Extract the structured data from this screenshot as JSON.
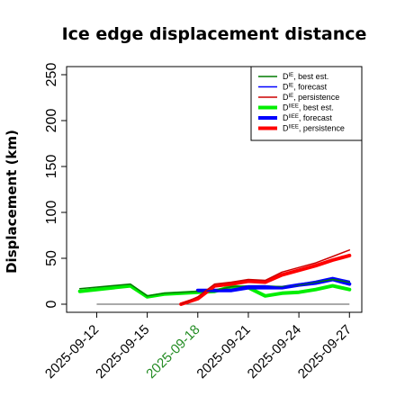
{
  "chart_data": {
    "type": "line",
    "title": "Ice edge displacement distance",
    "xlabel": "",
    "ylabel": "Displacement (km)",
    "ylim": [
      0,
      260
    ],
    "yticks": [
      0,
      50,
      100,
      150,
      200,
      250
    ],
    "x_axis": {
      "type": "date",
      "range": [
        "2025-09-10",
        "2025-09-28"
      ],
      "ticks": [
        "2025-09-12",
        "2025-09-15",
        "2025-09-18",
        "2025-09-21",
        "2025-09-24",
        "2025-09-27"
      ],
      "highlighted_tick": "2025-09-18",
      "highlight_color": "#228b22"
    },
    "grid": false,
    "legend_placement": "top-right",
    "reference_line": {
      "y": 0,
      "x_range": [
        "2025-09-12",
        "2025-09-27"
      ],
      "color": "#555555"
    },
    "series": [
      {
        "name": "D^IE, best est.",
        "label_base": "D",
        "label_sup": "IE",
        "label_rest": ", best est.",
        "color": "#007a00",
        "width": 1.5,
        "x": [
          "2025-09-11",
          "2025-09-14",
          "2025-09-15",
          "2025-09-16",
          "2025-09-18",
          "2025-09-19",
          "2025-09-20",
          "2025-09-21",
          "2025-09-22",
          "2025-09-23",
          "2025-09-24",
          "2025-09-25",
          "2025-09-26",
          "2025-09-27"
        ],
        "y": [
          17,
          22,
          9,
          12,
          14,
          15,
          19,
          20,
          20,
          19,
          21,
          24,
          27,
          24
        ]
      },
      {
        "name": "D^IE, forecast",
        "label_base": "D",
        "label_sup": "IE",
        "label_rest": ", forecast",
        "color": "#0000ff",
        "width": 1.5,
        "x": [
          "2025-09-18",
          "2025-09-19",
          "2025-09-20",
          "2025-09-21",
          "2025-09-22",
          "2025-09-23",
          "2025-09-24",
          "2025-09-25",
          "2025-09-26",
          "2025-09-27"
        ],
        "y": [
          14,
          15,
          16,
          20,
          20,
          18,
          22,
          25,
          29,
          25
        ]
      },
      {
        "name": "D^IE, persistence",
        "label_base": "D",
        "label_sup": "IE",
        "label_rest": ", persistence",
        "color": "#cc0000",
        "width": 1.5,
        "x": [
          "2025-09-17",
          "2025-09-18",
          "2025-09-19",
          "2025-09-20",
          "2025-09-21",
          "2025-09-22",
          "2025-09-23",
          "2025-09-24",
          "2025-09-25",
          "2025-09-26",
          "2025-09-27"
        ],
        "y": [
          0,
          8,
          22,
          24,
          27,
          26,
          35,
          40,
          45,
          52,
          59
        ]
      },
      {
        "name": "D^IIEE, best est.",
        "label_base": "D",
        "label_sup": "IIEE",
        "label_rest": ", best est.",
        "color": "#00ee00",
        "width": 4,
        "x": [
          "2025-09-11",
          "2025-09-14",
          "2025-09-15",
          "2025-09-16",
          "2025-09-18",
          "2025-09-19",
          "2025-09-20",
          "2025-09-21",
          "2025-09-22",
          "2025-09-23",
          "2025-09-24",
          "2025-09-25",
          "2025-09-26",
          "2025-09-27"
        ],
        "y": [
          14,
          20,
          8,
          11,
          13,
          14,
          19,
          18,
          9,
          12,
          13,
          16,
          20,
          16
        ]
      },
      {
        "name": "D^IIEE, forecast",
        "label_base": "D",
        "label_sup": "IIEE",
        "label_rest": ", forecast",
        "color": "#0000ff",
        "width": 4,
        "x": [
          "2025-09-18",
          "2025-09-19",
          "2025-09-20",
          "2025-09-21",
          "2025-09-22",
          "2025-09-23",
          "2025-09-24",
          "2025-09-25",
          "2025-09-26",
          "2025-09-27"
        ],
        "y": [
          15,
          15,
          15,
          18,
          18,
          18,
          21,
          23,
          27,
          22
        ]
      },
      {
        "name": "D^IIEE, persistence",
        "label_base": "D",
        "label_sup": "IIEE",
        "label_rest": ", persistence",
        "color": "#ff0000",
        "width": 4,
        "x": [
          "2025-09-17",
          "2025-09-18",
          "2025-09-19",
          "2025-09-20",
          "2025-09-21",
          "2025-09-22",
          "2025-09-23",
          "2025-09-24",
          "2025-09-25",
          "2025-09-26",
          "2025-09-27"
        ],
        "y": [
          0,
          6,
          20,
          22,
          25,
          24,
          32,
          37,
          42,
          48,
          53
        ]
      }
    ]
  }
}
